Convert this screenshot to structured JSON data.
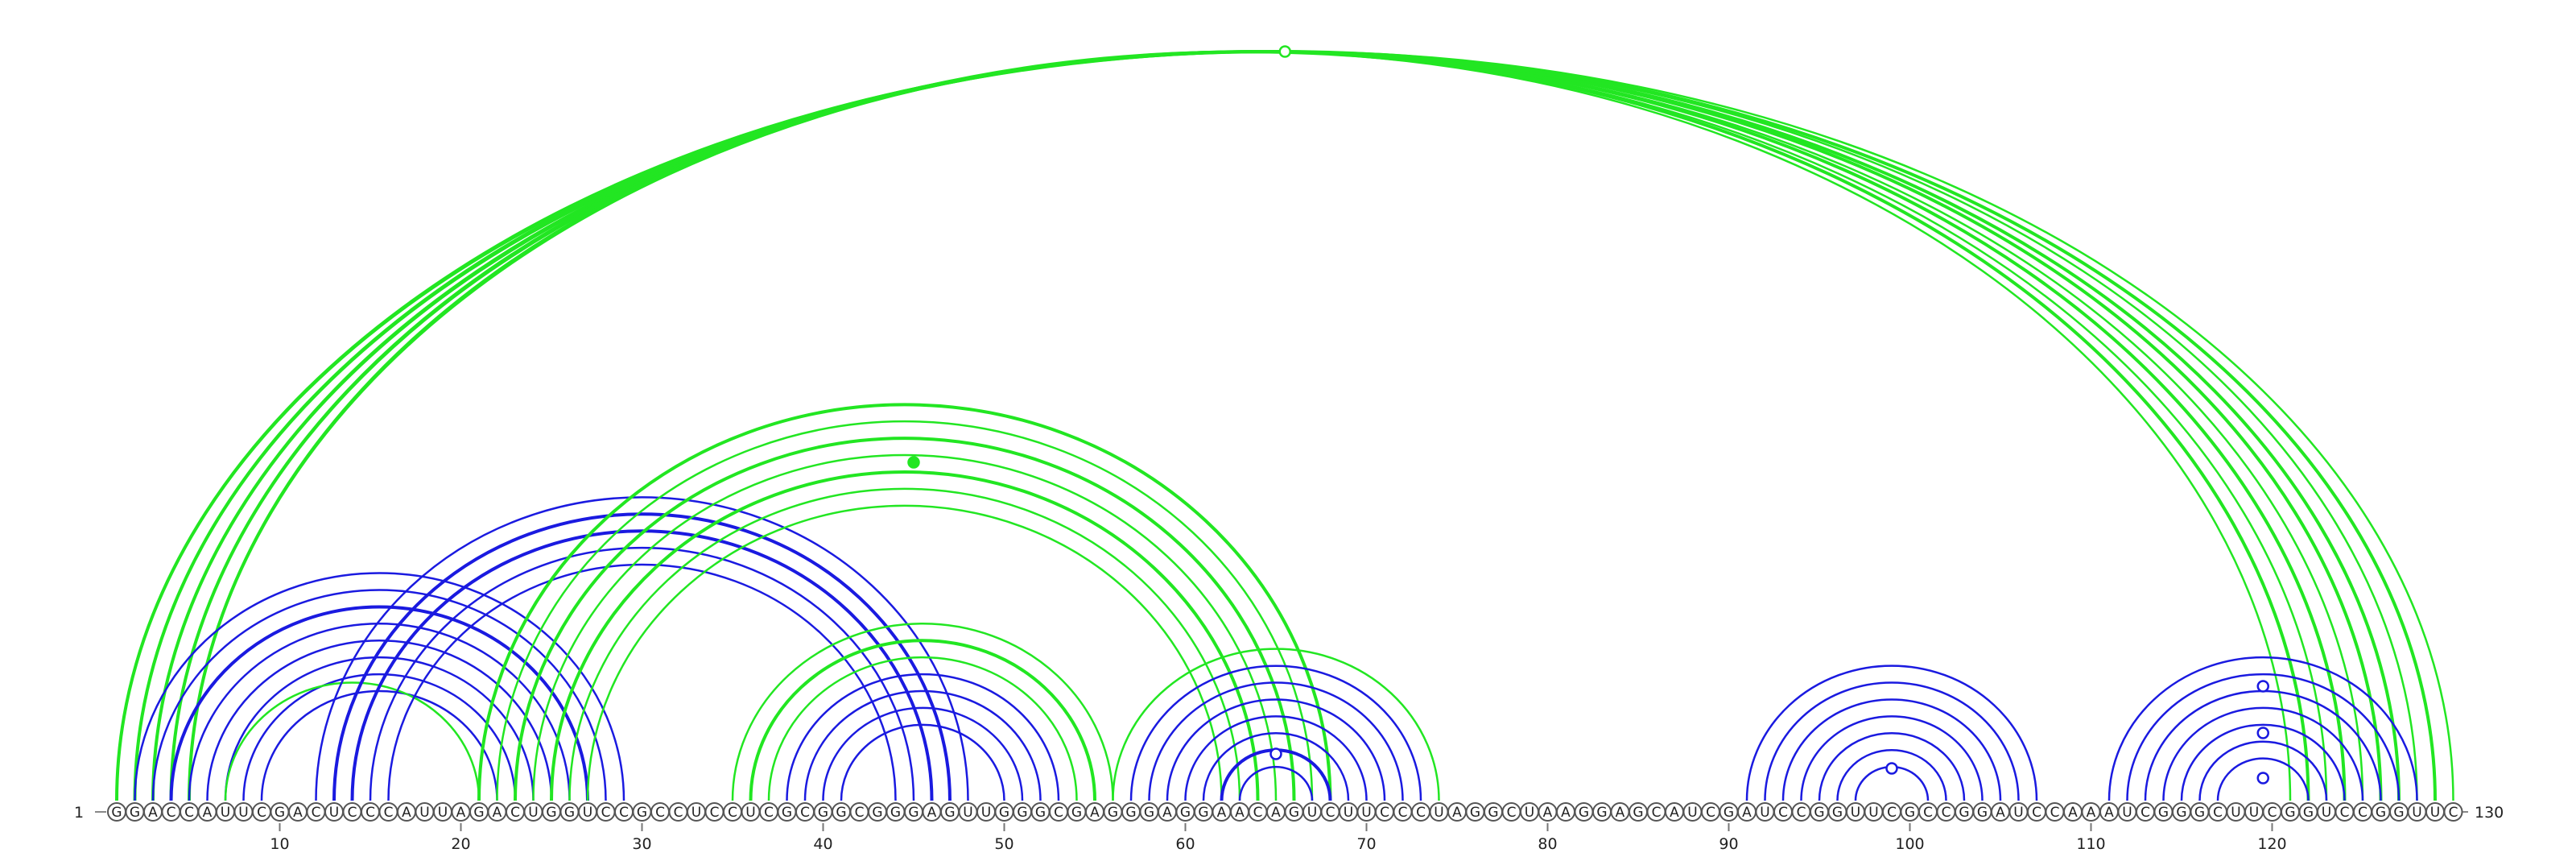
{
  "sequence": "GGACCAUUCGACUCCCAUUAGACUGGUCCGCCUCCUCGCGGCGGGAGUUGGGCGAGGGAGGAACAGUCUUCCCUAGGCUAAGGAGCAUCGAUCCGGUUCGCCGGAUCCAAAUCGGGCUUCGGUCCGGUUC",
  "start_label": "1",
  "end_label": "130",
  "ticks": [
    10,
    20,
    30,
    40,
    50,
    60,
    70,
    80,
    90,
    100,
    110,
    120
  ],
  "colors": {
    "green": "#22e622",
    "blue": "#1a1ae0"
  },
  "arcs": [
    {
      "i": 1,
      "j": 130,
      "color": "green",
      "weight": "thin"
    },
    {
      "i": 1,
      "j": 129,
      "color": "green",
      "weight": "thick"
    },
    {
      "i": 2,
      "j": 127,
      "color": "green",
      "weight": "thick"
    },
    {
      "i": 2,
      "j": 128,
      "color": "green",
      "weight": "thin"
    },
    {
      "i": 3,
      "j": 126,
      "color": "green",
      "weight": "thick"
    },
    {
      "i": 3,
      "j": 125,
      "color": "green",
      "weight": "thin"
    },
    {
      "i": 4,
      "j": 124,
      "color": "green",
      "weight": "thick"
    },
    {
      "i": 4,
      "j": 123,
      "color": "green",
      "weight": "thin"
    },
    {
      "i": 5,
      "j": 122,
      "color": "green",
      "weight": "thick"
    },
    {
      "i": 5,
      "j": 121,
      "color": "green",
      "weight": "thin"
    },
    {
      "i": 2,
      "j": 29,
      "color": "blue",
      "weight": "thin"
    },
    {
      "i": 3,
      "j": 28,
      "color": "blue",
      "weight": "thin"
    },
    {
      "i": 4,
      "j": 27,
      "color": "blue",
      "weight": "thick"
    },
    {
      "i": 5,
      "j": 26,
      "color": "blue",
      "weight": "thin"
    },
    {
      "i": 6,
      "j": 25,
      "color": "blue",
      "weight": "thin"
    },
    {
      "i": 7,
      "j": 24,
      "color": "blue",
      "weight": "thin"
    },
    {
      "i": 8,
      "j": 23,
      "color": "blue",
      "weight": "thin"
    },
    {
      "i": 9,
      "j": 22,
      "color": "blue",
      "weight": "thin"
    },
    {
      "i": 7,
      "j": 21,
      "color": "green",
      "weight": "thin"
    },
    {
      "i": 12,
      "j": 48,
      "color": "blue",
      "weight": "thin"
    },
    {
      "i": 13,
      "j": 47,
      "color": "blue",
      "weight": "thick"
    },
    {
      "i": 14,
      "j": 46,
      "color": "blue",
      "weight": "thick"
    },
    {
      "i": 15,
      "j": 45,
      "color": "blue",
      "weight": "thin"
    },
    {
      "i": 16,
      "j": 44,
      "color": "blue",
      "weight": "thin"
    },
    {
      "i": 21,
      "j": 68,
      "color": "green",
      "weight": "thick"
    },
    {
      "i": 22,
      "j": 67,
      "color": "green",
      "weight": "thin"
    },
    {
      "i": 23,
      "j": 66,
      "color": "green",
      "weight": "thick"
    },
    {
      "i": 24,
      "j": 65,
      "color": "green",
      "weight": "thin"
    },
    {
      "i": 25,
      "j": 64,
      "color": "green",
      "weight": "thick"
    },
    {
      "i": 26,
      "j": 63,
      "color": "green",
      "weight": "thin"
    },
    {
      "i": 27,
      "j": 62,
      "color": "green",
      "weight": "thin"
    },
    {
      "i": 35,
      "j": 56,
      "color": "green",
      "weight": "thin"
    },
    {
      "i": 36,
      "j": 55,
      "color": "green",
      "weight": "thick"
    },
    {
      "i": 37,
      "j": 54,
      "color": "green",
      "weight": "thin"
    },
    {
      "i": 38,
      "j": 53,
      "color": "blue",
      "weight": "thin"
    },
    {
      "i": 39,
      "j": 52,
      "color": "blue",
      "weight": "thin"
    },
    {
      "i": 40,
      "j": 51,
      "color": "blue",
      "weight": "thin"
    },
    {
      "i": 41,
      "j": 50,
      "color": "blue",
      "weight": "thin"
    },
    {
      "i": 56,
      "j": 74,
      "color": "green",
      "weight": "thin"
    },
    {
      "i": 57,
      "j": 73,
      "color": "blue",
      "weight": "thin"
    },
    {
      "i": 58,
      "j": 72,
      "color": "blue",
      "weight": "thin"
    },
    {
      "i": 59,
      "j": 71,
      "color": "blue",
      "weight": "thin"
    },
    {
      "i": 60,
      "j": 70,
      "color": "blue",
      "weight": "thin"
    },
    {
      "i": 61,
      "j": 69,
      "color": "blue",
      "weight": "thin"
    },
    {
      "i": 62,
      "j": 68,
      "color": "blue",
      "weight": "thick"
    },
    {
      "i": 63,
      "j": 67,
      "color": "blue",
      "weight": "thin"
    },
    {
      "i": 91,
      "j": 107,
      "color": "blue",
      "weight": "thin"
    },
    {
      "i": 92,
      "j": 106,
      "color": "blue",
      "weight": "thin"
    },
    {
      "i": 93,
      "j": 105,
      "color": "blue",
      "weight": "thin"
    },
    {
      "i": 94,
      "j": 104,
      "color": "blue",
      "weight": "thin"
    },
    {
      "i": 95,
      "j": 103,
      "color": "blue",
      "weight": "thin"
    },
    {
      "i": 96,
      "j": 102,
      "color": "blue",
      "weight": "thin"
    },
    {
      "i": 97,
      "j": 101,
      "color": "blue",
      "weight": "thin"
    },
    {
      "i": 111,
      "j": 128,
      "color": "blue",
      "weight": "thin"
    },
    {
      "i": 112,
      "j": 127,
      "color": "blue",
      "weight": "thin"
    },
    {
      "i": 113,
      "j": 126,
      "color": "blue",
      "weight": "thin"
    },
    {
      "i": 114,
      "j": 125,
      "color": "blue",
      "weight": "thin"
    },
    {
      "i": 115,
      "j": 124,
      "color": "blue",
      "weight": "thin"
    },
    {
      "i": 116,
      "j": 123,
      "color": "blue",
      "weight": "thin"
    },
    {
      "i": 117,
      "j": 122,
      "color": "blue",
      "weight": "thin"
    }
  ],
  "markers": [
    {
      "pos": 65.5,
      "color": "green",
      "filled": false
    },
    {
      "pos": 45,
      "color": "green",
      "filled": true
    },
    {
      "pos": 65,
      "color": "blue",
      "filled": false
    },
    {
      "pos": 99,
      "color": "blue",
      "filled": false
    },
    {
      "pos": 119.5,
      "color": "blue",
      "filled": false
    },
    {
      "pos": 119.5,
      "color": "blue",
      "filled": false
    },
    {
      "pos": 119.5,
      "color": "blue",
      "filled": false
    }
  ]
}
